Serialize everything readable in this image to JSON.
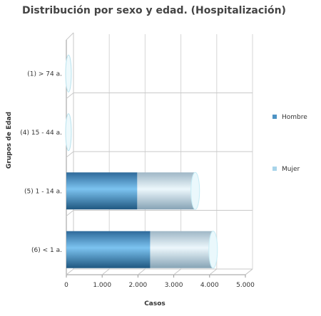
{
  "chart_data": {
    "type": "bar",
    "orientation": "horizontal",
    "stacked": true,
    "style": "3d-cylinder",
    "title": "Distribución por sexo y edad. (Hospitalización)",
    "xlabel": "Casos",
    "ylabel": "Grupos de Edad",
    "categories": [
      "(1) > 74 a.",
      "(4) 15 - 44 a.",
      "(5) 1 - 14 a.",
      "(6) < 1 a."
    ],
    "series": [
      {
        "name": "Hombre",
        "values": [
          0,
          0,
          1980,
          2340
        ],
        "color": "#4d93c4"
      },
      {
        "name": "Mujer",
        "values": [
          0,
          0,
          1620,
          1760
        ],
        "color": "#a8d4ea"
      }
    ],
    "xlim": [
      0,
      5000
    ],
    "xticks": [
      0,
      1000,
      2000,
      3000,
      4000,
      5000
    ],
    "xtick_labels": [
      "0",
      "1.000",
      "2.000",
      "3.000",
      "4.000",
      "5.000"
    ],
    "grid": true,
    "legend_position": "right"
  }
}
